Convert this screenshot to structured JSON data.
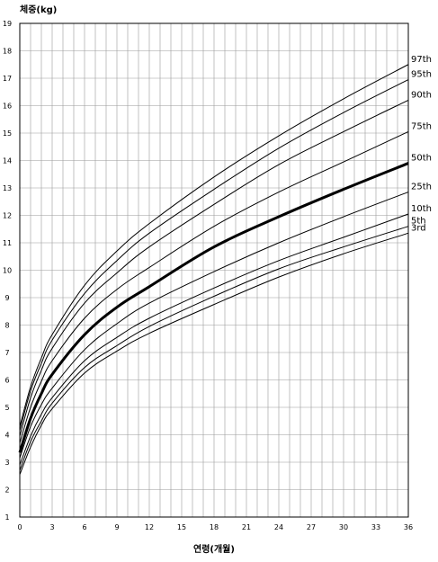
{
  "chart_data": {
    "type": "line",
    "ylabel": "체중(kg)",
    "xlabel": "연령(개월)",
    "xlim": [
      0,
      36
    ],
    "ylim": [
      1,
      19
    ],
    "x_ticks": [
      0,
      3,
      6,
      9,
      12,
      15,
      18,
      21,
      24,
      27,
      30,
      33,
      36
    ],
    "y_ticks": [
      1,
      2,
      3,
      4,
      5,
      6,
      7,
      8,
      9,
      10,
      11,
      12,
      13,
      14,
      15,
      16,
      17,
      18,
      19
    ],
    "grid": true,
    "x": [
      0,
      1,
      2,
      3,
      6,
      9,
      12,
      18,
      24,
      30,
      36
    ],
    "series": [
      {
        "name": "3rd",
        "values": [
          2.55,
          3.55,
          4.35,
          4.95,
          6.25,
          7.05,
          7.7,
          8.75,
          9.75,
          10.6,
          11.35
        ],
        "bold": false
      },
      {
        "name": "5th",
        "values": [
          2.7,
          3.75,
          4.5,
          5.15,
          6.45,
          7.25,
          7.95,
          9.05,
          10.05,
          10.85,
          11.6
        ],
        "bold": false
      },
      {
        "name": "10th",
        "values": [
          2.9,
          3.95,
          4.75,
          5.35,
          6.7,
          7.55,
          8.25,
          9.35,
          10.35,
          11.2,
          12.05
        ],
        "bold": false
      },
      {
        "name": "25th",
        "values": [
          3.15,
          4.3,
          5.1,
          5.7,
          7.1,
          8.05,
          8.8,
          9.95,
          11.0,
          11.95,
          12.85
        ],
        "bold": false
      },
      {
        "name": "50th",
        "values": [
          3.35,
          4.6,
          5.5,
          6.2,
          7.65,
          8.65,
          9.4,
          10.85,
          11.95,
          12.95,
          13.9
        ],
        "bold": true
      },
      {
        "name": "75th",
        "values": [
          3.7,
          5.0,
          5.95,
          6.7,
          8.25,
          9.3,
          10.1,
          11.6,
          12.85,
          13.95,
          15.05
        ],
        "bold": false
      },
      {
        "name": "90th",
        "values": [
          3.95,
          5.35,
          6.35,
          7.15,
          8.8,
          9.9,
          10.85,
          12.4,
          13.85,
          15.05,
          16.2
        ],
        "bold": false
      },
      {
        "name": "95th",
        "values": [
          4.15,
          5.6,
          6.6,
          7.45,
          9.15,
          10.35,
          11.35,
          12.95,
          14.45,
          15.75,
          16.95
        ],
        "bold": false
      },
      {
        "name": "97th",
        "values": [
          4.3,
          5.75,
          6.8,
          7.65,
          9.45,
          10.7,
          11.7,
          13.4,
          14.9,
          16.25,
          17.5
        ],
        "bold": false
      }
    ]
  }
}
